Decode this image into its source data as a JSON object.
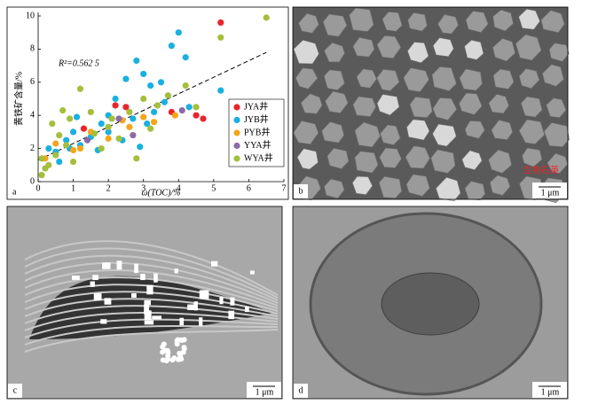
{
  "chart_data": {
    "type": "scatter",
    "panel_label": "a",
    "xlabel": "ω(TOC)/%",
    "ylabel": "黄铁矿含量/%",
    "annotation": "R²=0.562 5",
    "trend": {
      "x": [
        0,
        6.5
      ],
      "y": [
        1.3,
        7.8
      ]
    },
    "xlim": [
      0,
      7
    ],
    "ylim": [
      0,
      10
    ],
    "xticks": [
      0,
      1,
      2,
      3,
      4,
      5,
      6,
      7
    ],
    "yticks": [
      0,
      2,
      4,
      6,
      8,
      10
    ],
    "legend": "upper right",
    "series": [
      {
        "name": "JYA井",
        "color": "#e8262a",
        "x": [
          5.2,
          4.5,
          2.5,
          2.2,
          3.8,
          4.7,
          1.3
        ],
        "values": [
          9.6,
          4.0,
          4.5,
          4.6,
          4.2,
          3.8,
          3.2
        ]
      },
      {
        "name": "JYB井",
        "color": "#1ab0e0",
        "x": [
          0.3,
          0.5,
          0.8,
          1.0,
          1.2,
          1.5,
          1.8,
          2.0,
          2.2,
          2.5,
          2.8,
          3.0,
          3.2,
          3.5,
          3.8,
          4.0,
          4.2,
          3.6,
          2.7,
          3.1,
          1.7,
          2.4,
          5.2,
          4.3,
          0.6,
          1.1,
          2.9,
          3.3,
          2.0,
          0.9
        ],
        "values": [
          2.0,
          1.8,
          2.5,
          3.0,
          2.2,
          2.7,
          3.5,
          3.0,
          5.0,
          6.2,
          7.3,
          6.5,
          5.8,
          6.0,
          8.2,
          9.0,
          7.5,
          4.8,
          3.8,
          3.5,
          1.9,
          2.5,
          5.5,
          4.5,
          1.2,
          3.9,
          2.1,
          4.2,
          4.0,
          2.0
        ]
      },
      {
        "name": "PYB井",
        "color": "#f5a51c",
        "x": [
          0.5,
          1.0,
          1.5,
          2.0,
          2.4,
          3.0,
          3.3,
          3.9,
          1.2,
          0.2,
          2.6
        ],
        "values": [
          2.3,
          1.9,
          3.0,
          2.6,
          3.7,
          3.9,
          3.6,
          4.0,
          2.0,
          1.4,
          3.3
        ]
      },
      {
        "name": "YYA井",
        "color": "#8e6aa8",
        "x": [
          2.3,
          2.7,
          4.1,
          1.4
        ],
        "values": [
          3.8,
          2.8,
          4.3,
          2.5
        ]
      },
      {
        "name": "WYA井",
        "color": "#a4bf3c",
        "x": [
          0.1,
          0.2,
          0.1,
          0.3,
          0.5,
          0.4,
          0.7,
          0.9,
          1.2,
          1.5,
          1.8,
          2.0,
          2.3,
          2.6,
          2.8,
          3.0,
          3.4,
          3.7,
          4.2,
          4.5,
          5.2,
          6.5,
          1.0,
          1.6,
          2.1,
          0.6,
          0.8,
          3.2
        ],
        "values": [
          0.4,
          0.8,
          1.4,
          1.0,
          1.6,
          3.5,
          4.3,
          3.8,
          5.6,
          4.2,
          2.0,
          3.3,
          2.6,
          4.2,
          1.4,
          5.0,
          4.6,
          5.2,
          5.8,
          4.5,
          8.7,
          9.9,
          1.2,
          2.9,
          3.8,
          2.8,
          2.2,
          3.2
        ]
      }
    ]
  },
  "panels": [
    {
      "label": "b",
      "scale": "1 μm",
      "annotation": "生物石英"
    },
    {
      "label": "c",
      "scale": "1 μm"
    },
    {
      "label": "d",
      "scale": "1 μm"
    }
  ]
}
